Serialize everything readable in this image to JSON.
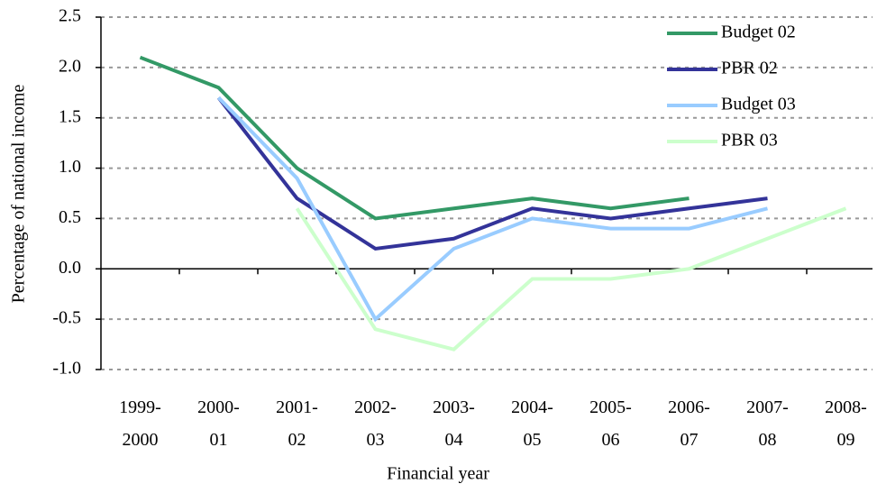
{
  "chart_data": {
    "type": "line",
    "x_label": "Financial year",
    "y_label": "Percentage of national income",
    "categories": [
      "1999-2000",
      "2000-01",
      "2001-02",
      "2002-03",
      "2003-04",
      "2004-05",
      "2005-06",
      "2006-07",
      "2007-08",
      "2008-09"
    ],
    "series": [
      {
        "name": "Budget 02",
        "color": "#339966",
        "values": [
          2.1,
          1.8,
          1.0,
          0.5,
          0.6,
          0.7,
          0.6,
          0.7,
          null,
          null
        ]
      },
      {
        "name": "PBR 02",
        "color": "#333399",
        "values": [
          null,
          1.7,
          0.7,
          0.2,
          0.3,
          0.6,
          0.5,
          0.6,
          0.7,
          null
        ]
      },
      {
        "name": "Budget 03",
        "color": "#99ccff",
        "values": [
          null,
          1.7,
          0.9,
          -0.5,
          0.2,
          0.5,
          0.4,
          0.4,
          0.6,
          null
        ]
      },
      {
        "name": "PBR 03",
        "color": "#ccffcc",
        "values": [
          null,
          null,
          0.6,
          -0.6,
          -0.8,
          -0.1,
          -0.1,
          0.0,
          0.3,
          0.6
        ]
      }
    ],
    "ylim": [
      -1,
      2.5
    ],
    "yticks": [
      {
        "value": -1,
        "label": "-1.0"
      },
      -0.5,
      {
        "value": 0,
        "label": "0.0"
      },
      0.5,
      {
        "value": 1,
        "label": "1.0"
      },
      1.5,
      {
        "value": 2,
        "label": "2.0"
      },
      2.5
    ],
    "grid": true,
    "legend": "top-right"
  }
}
